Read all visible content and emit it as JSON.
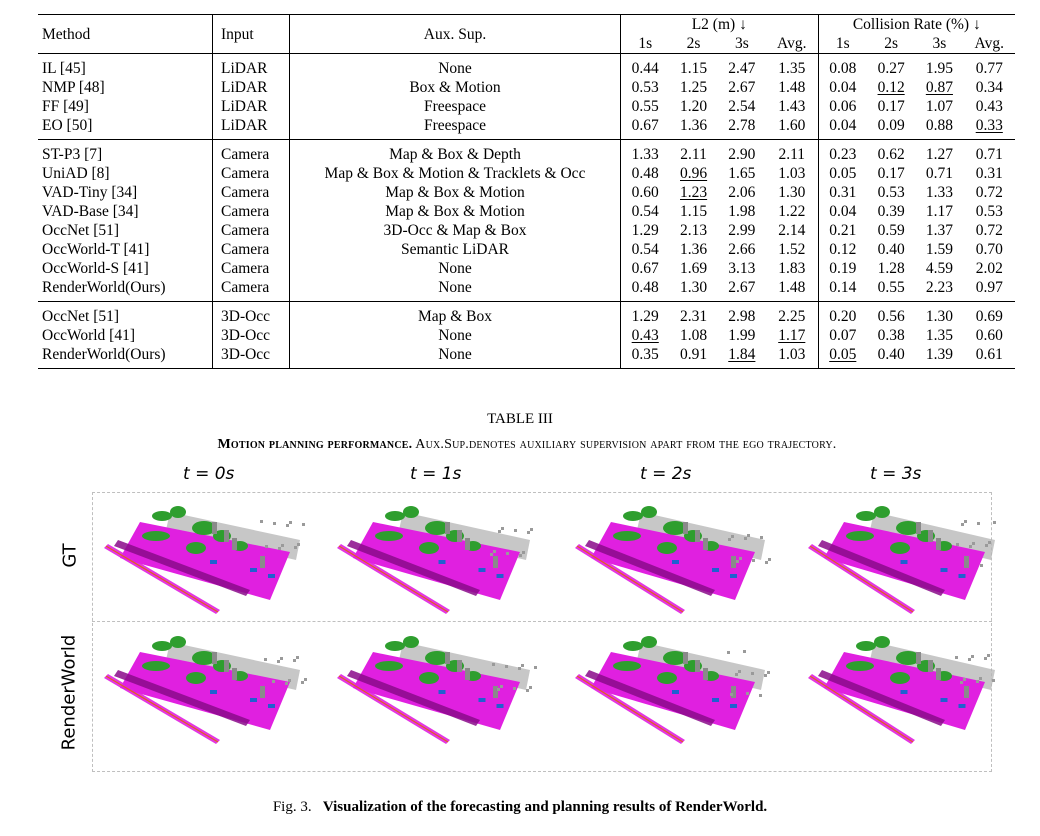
{
  "table": {
    "header": {
      "method": "Method",
      "input": "Input",
      "aux": "Aux. Sup.",
      "l2": "L2 (m) ↓",
      "collision": "Collision Rate (%) ↓",
      "sub": [
        "1s",
        "2s",
        "3s",
        "Avg.",
        "1s",
        "2s",
        "3s",
        "Avg."
      ]
    },
    "groups": [
      {
        "rows": [
          {
            "method": "IL [45]",
            "input": "LiDAR",
            "aux": "None",
            "vals": [
              {
                "v": "0.44"
              },
              {
                "v": "1.15"
              },
              {
                "v": "2.47"
              },
              {
                "v": "1.35"
              },
              {
                "v": "0.08"
              },
              {
                "v": "0.27"
              },
              {
                "v": "1.95"
              },
              {
                "v": "0.77"
              }
            ]
          },
          {
            "method": "NMP [48]",
            "input": "LiDAR",
            "aux": "Box & Motion",
            "vals": [
              {
                "v": "0.53"
              },
              {
                "v": "1.25"
              },
              {
                "v": "2.67"
              },
              {
                "v": "1.48"
              },
              {
                "v": "0.04",
                "b": true
              },
              {
                "v": "0.12",
                "u": true
              },
              {
                "v": "0.87",
                "u": true
              },
              {
                "v": "0.34"
              }
            ]
          },
          {
            "method": "FF [49]",
            "input": "LiDAR",
            "aux": "Freespace",
            "vals": [
              {
                "v": "0.55"
              },
              {
                "v": "1.20"
              },
              {
                "v": "2.54"
              },
              {
                "v": "1.43"
              },
              {
                "v": "0.06"
              },
              {
                "v": "0.17"
              },
              {
                "v": "1.07"
              },
              {
                "v": "0.43"
              }
            ]
          },
          {
            "method": "EO [50]",
            "input": "LiDAR",
            "aux": "Freespace",
            "vals": [
              {
                "v": "0.67"
              },
              {
                "v": "1.36"
              },
              {
                "v": "2.78"
              },
              {
                "v": "1.60"
              },
              {
                "v": "0.04",
                "b": true
              },
              {
                "v": "0.09",
                "b": true
              },
              {
                "v": "0.88"
              },
              {
                "v": "0.33",
                "u": true
              }
            ]
          }
        ]
      },
      {
        "rows": [
          {
            "method": "ST-P3 [7]",
            "input": "Camera",
            "aux": "Map & Box & Depth",
            "vals": [
              {
                "v": "1.33"
              },
              {
                "v": "2.11"
              },
              {
                "v": "2.90"
              },
              {
                "v": "2.11"
              },
              {
                "v": "0.23"
              },
              {
                "v": "0.62"
              },
              {
                "v": "1.27"
              },
              {
                "v": "0.71"
              }
            ]
          },
          {
            "method": "UniAD [8]",
            "input": "Camera",
            "aux": "Map & Box & Motion & Tracklets & Occ",
            "vals": [
              {
                "v": "0.48"
              },
              {
                "v": "0.96",
                "u": true
              },
              {
                "v": "1.65",
                "b": true
              },
              {
                "v": "1.03",
                "b": true
              },
              {
                "v": "0.05"
              },
              {
                "v": "0.17"
              },
              {
                "v": "0.71",
                "b": true
              },
              {
                "v": "0.31",
                "b": true
              }
            ]
          },
          {
            "method": "VAD-Tiny [34]",
            "input": "Camera",
            "aux": "Map & Box & Motion",
            "vals": [
              {
                "v": "0.60"
              },
              {
                "v": "1.23",
                "u": true
              },
              {
                "v": "2.06"
              },
              {
                "v": "1.30"
              },
              {
                "v": "0.31"
              },
              {
                "v": "0.53"
              },
              {
                "v": "1.33"
              },
              {
                "v": "0.72"
              }
            ]
          },
          {
            "method": "VAD-Base [34]",
            "input": "Camera",
            "aux": "Map & Box & Motion",
            "vals": [
              {
                "v": "0.54"
              },
              {
                "v": "1.15"
              },
              {
                "v": "1.98"
              },
              {
                "v": "1.22"
              },
              {
                "v": "0.04",
                "b": true
              },
              {
                "v": "0.39"
              },
              {
                "v": "1.17"
              },
              {
                "v": "0.53"
              }
            ]
          },
          {
            "method": "OccNet [51]",
            "input": "Camera",
            "aux": "3D-Occ & Map & Box",
            "vals": [
              {
                "v": "1.29"
              },
              {
                "v": "2.13"
              },
              {
                "v": "2.99"
              },
              {
                "v": "2.14"
              },
              {
                "v": "0.21"
              },
              {
                "v": "0.59"
              },
              {
                "v": "1.37"
              },
              {
                "v": "0.72"
              }
            ]
          },
          {
            "method": "OccWorld-T [41]",
            "input": "Camera",
            "aux": "Semantic LiDAR",
            "vals": [
              {
                "v": "0.54"
              },
              {
                "v": "1.36"
              },
              {
                "v": "2.66"
              },
              {
                "v": "1.52"
              },
              {
                "v": "0.12"
              },
              {
                "v": "0.40"
              },
              {
                "v": "1.59"
              },
              {
                "v": "0.70"
              }
            ]
          },
          {
            "method": "OccWorld-S [41]",
            "input": "Camera",
            "aux": "None",
            "vals": [
              {
                "v": "0.67"
              },
              {
                "v": "1.69"
              },
              {
                "v": "3.13"
              },
              {
                "v": "1.83"
              },
              {
                "v": "0.19"
              },
              {
                "v": "1.28"
              },
              {
                "v": "4.59"
              },
              {
                "v": "2.02"
              }
            ]
          },
          {
            "method": "RenderWorld(Ours)",
            "method_bold": true,
            "input": "Camera",
            "aux": "None",
            "vals": [
              {
                "v": "0.48"
              },
              {
                "v": "1.30"
              },
              {
                "v": "2.67"
              },
              {
                "v": "1.48"
              },
              {
                "v": "0.14"
              },
              {
                "v": "0.55"
              },
              {
                "v": "2.23"
              },
              {
                "v": "0.97"
              }
            ]
          }
        ]
      },
      {
        "rows": [
          {
            "method": "OccNet [51]",
            "input": "3D-Occ",
            "aux": "Map & Box",
            "vals": [
              {
                "v": "1.29"
              },
              {
                "v": "2.31"
              },
              {
                "v": "2.98"
              },
              {
                "v": "2.25"
              },
              {
                "v": "0.20"
              },
              {
                "v": "0.56"
              },
              {
                "v": "1.30"
              },
              {
                "v": "0.69"
              }
            ]
          },
          {
            "method": "OccWorld [41]",
            "input": "3D-Occ",
            "aux": "None",
            "vals": [
              {
                "v": "0.43",
                "u": true
              },
              {
                "v": "1.08"
              },
              {
                "v": "1.99"
              },
              {
                "v": "1.17",
                "u": true
              },
              {
                "v": "0.07"
              },
              {
                "v": "0.38"
              },
              {
                "v": "1.35"
              },
              {
                "v": "0.60"
              }
            ]
          },
          {
            "method": "RenderWorld(Ours)",
            "method_bold": true,
            "input": "3D-Occ",
            "aux": "None",
            "vals": [
              {
                "v": "0.35",
                "b": true
              },
              {
                "v": "0.91",
                "b": true
              },
              {
                "v": "1.84",
                "u": true
              },
              {
                "v": "1.03",
                "b": true
              },
              {
                "v": "0.05",
                "u": true
              },
              {
                "v": "0.40"
              },
              {
                "v": "1.39"
              },
              {
                "v": "0.61"
              }
            ]
          }
        ]
      }
    ]
  },
  "table_caption": {
    "title": "TABLE III",
    "lead": "Motion planning performance.",
    "text": " Aux.Sup.denotes auxiliary supervision apart from the ego trajectory."
  },
  "figure": {
    "time_labels": [
      "t = 0s",
      "t = 1s",
      "t = 2s",
      "t = 3s"
    ],
    "row_labels": [
      "GT",
      "RenderWorld"
    ],
    "colors": {
      "road": "#e020e0",
      "vegetation": "#2e9e2e",
      "building": "#b4b4b4",
      "vehicle": "#2060d0",
      "sidewalk": "#8a0a8a",
      "barrier": "#e06020"
    }
  },
  "figure_caption": {
    "label": "Fig. 3.",
    "title": "Visualization of the forecasting and planning results of RenderWorld."
  }
}
